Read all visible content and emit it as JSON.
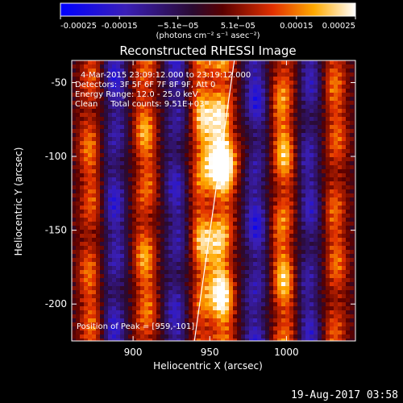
{
  "chart_data": {
    "type": "heatmap",
    "title": "Reconstructed RHESSI Image",
    "xlabel": "Heliocentric X (arcsec)",
    "ylabel": "Heliocentric Y (arcsec)",
    "xlim": [
      860,
      1045
    ],
    "ylim": [
      -225,
      -35
    ],
    "x_ticks": [
      900,
      950,
      1000
    ],
    "y_ticks": [
      -50,
      -100,
      -150,
      -200
    ],
    "colorbar": {
      "range": [
        -0.00025,
        0.00025
      ],
      "tick_values": [
        -0.00025,
        -0.00015,
        -5.1e-05,
        5.1e-05,
        0.00015,
        0.00025
      ],
      "tick_labels": [
        "-0.00025",
        "-0.00015",
        "−5.1e−05",
        "5.1e−05",
        "0.00015",
        "0.00025"
      ],
      "units": "(photons cm⁻² s⁻¹ asec⁻²)"
    },
    "annotations": [
      "4-Mar-2015 23:09:12.000 to 23:19:12.000",
      "Detectors: 3F 5F 6F 7F 8F 9F, Att 0",
      "Energy Range: 12.0 - 25.0 keV",
      "Clean     Total counts: 9.51E+03"
    ],
    "peak_label": "Position of Peak = [959,-101]",
    "peak": [
      959,
      -101
    ],
    "limb_line": [
      [
        940,
        -225
      ],
      [
        966,
        -35
      ]
    ],
    "stripes": [
      {
        "x": 872,
        "sign": 1,
        "amp": 0.55
      },
      {
        "x": 888,
        "sign": -1,
        "amp": 0.6
      },
      {
        "x": 908,
        "sign": 1,
        "amp": 0.65
      },
      {
        "x": 928,
        "sign": -1,
        "amp": 0.55
      },
      {
        "x": 945,
        "sign": 1,
        "amp": 0.7
      },
      {
        "x": 958,
        "sign": 1,
        "amp": 0.95
      },
      {
        "x": 980,
        "sign": -1,
        "amp": 0.65
      },
      {
        "x": 998,
        "sign": 1,
        "amp": 0.75
      },
      {
        "x": 1015,
        "sign": -1,
        "amp": 0.55
      },
      {
        "x": 1032,
        "sign": 1,
        "amp": 0.55
      }
    ]
  },
  "footer": {
    "date": "19-Aug-2017 03:58"
  }
}
